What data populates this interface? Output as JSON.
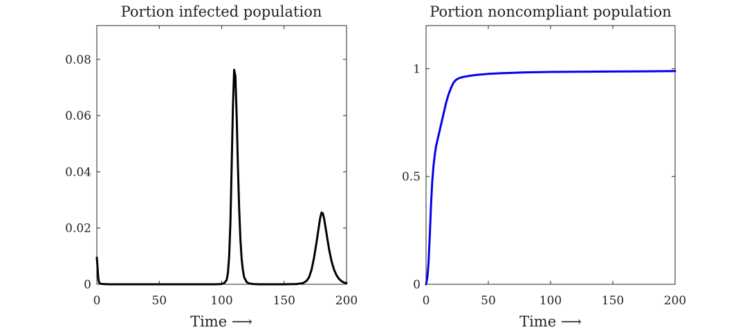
{
  "chart_data": [
    {
      "type": "line",
      "title": "Portion infected population",
      "xlabel": "Time ⟶",
      "ylabel": "",
      "xlim": [
        0,
        200
      ],
      "ylim": [
        0,
        0.092
      ],
      "xticks": [
        0,
        50,
        100,
        150,
        200
      ],
      "xtick_labels": [
        "0",
        "50",
        "100",
        "150",
        "200"
      ],
      "yticks": [
        0,
        0.02,
        0.04,
        0.06,
        0.08
      ],
      "ytick_labels": [
        "0",
        "0.02",
        "0.04",
        "0.06",
        "0.08"
      ],
      "grid": false,
      "series": [
        {
          "name": "infected",
          "color": "#000000",
          "x": [
            0,
            0.5,
            1,
            1.5,
            2,
            3,
            5,
            10,
            20,
            40,
            60,
            80,
            95,
            100,
            102,
            104,
            105,
            106,
            107,
            108,
            109,
            110,
            111,
            112,
            113,
            114,
            115,
            116,
            117,
            118,
            120,
            122,
            125,
            130,
            140,
            150,
            160,
            165,
            168,
            170,
            172,
            174,
            176,
            178,
            179,
            180,
            181,
            182,
            184,
            186,
            188,
            190,
            192,
            194,
            196,
            198,
            200
          ],
          "values": [
            0.0095,
            0.0065,
            0.003,
            0.0012,
            0.0005,
            0.0002,
            0.0001,
            0.0,
            0.0,
            0.0,
            0.0,
            0.0,
            0.0,
            0.0001,
            0.0004,
            0.0015,
            0.004,
            0.01,
            0.022,
            0.042,
            0.063,
            0.0763,
            0.074,
            0.06,
            0.042,
            0.027,
            0.016,
            0.009,
            0.005,
            0.0025,
            0.0008,
            0.0003,
            0.0001,
            0.0,
            0.0,
            0.0,
            0.0001,
            0.0004,
            0.0012,
            0.0025,
            0.0052,
            0.0095,
            0.015,
            0.021,
            0.0238,
            0.0255,
            0.0252,
            0.0235,
            0.018,
            0.0125,
            0.0082,
            0.0052,
            0.0032,
            0.0019,
            0.0011,
            0.0006,
            0.0004
          ]
        }
      ]
    },
    {
      "type": "line",
      "title": "Portion noncompliant population",
      "xlabel": "Time ⟶",
      "ylabel": "",
      "xlim": [
        0,
        200
      ],
      "ylim": [
        0,
        1.2
      ],
      "xticks": [
        0,
        50,
        100,
        150,
        200
      ],
      "xtick_labels": [
        "0",
        "50",
        "100",
        "150",
        "200"
      ],
      "yticks": [
        0,
        0.5,
        1
      ],
      "ytick_labels": [
        "0",
        "0.5",
        "1"
      ],
      "grid": false,
      "series": [
        {
          "name": "noncompliant",
          "color": "#0000ee",
          "x": [
            0,
            1,
            2,
            3,
            4,
            5,
            6,
            7,
            8,
            10,
            12,
            14,
            16,
            18,
            20,
            22,
            24,
            26,
            28,
            30,
            35,
            40,
            50,
            60,
            80,
            100,
            120,
            150,
            180,
            200
          ],
          "values": [
            0.0,
            0.03,
            0.1,
            0.23,
            0.37,
            0.48,
            0.55,
            0.6,
            0.64,
            0.69,
            0.74,
            0.79,
            0.84,
            0.88,
            0.91,
            0.935,
            0.948,
            0.955,
            0.959,
            0.962,
            0.967,
            0.971,
            0.976,
            0.979,
            0.983,
            0.985,
            0.986,
            0.987,
            0.988,
            0.989
          ]
        }
      ]
    }
  ]
}
